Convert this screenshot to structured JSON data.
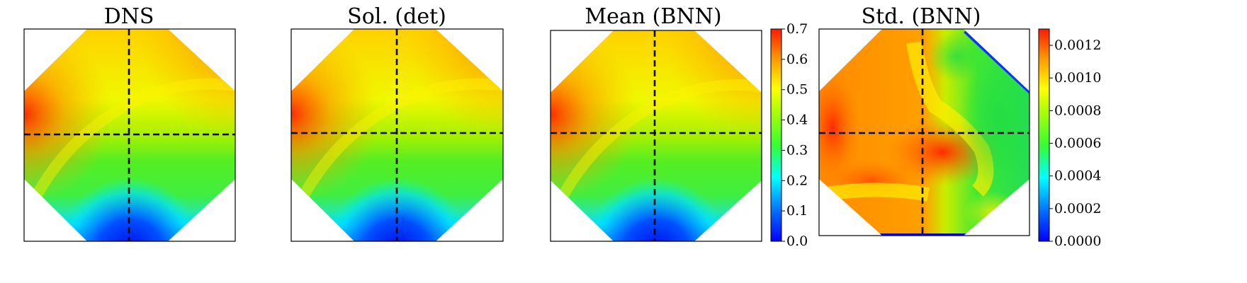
{
  "chart_data": [
    {
      "type": "heatmap",
      "title": "DNS",
      "style": "smooth",
      "colormap": "jet",
      "crosshair": "dashed black lines at domain center",
      "colorbar": null
    },
    {
      "type": "heatmap",
      "title": "Sol. (det)",
      "style": "pixelated",
      "colormap": "jet",
      "crosshair": "dashed black lines at domain center",
      "colorbar": null
    },
    {
      "type": "heatmap",
      "title": "Mean (BNN)",
      "style": "pixelated",
      "colormap": "jet",
      "crosshair": "dashed black lines at domain center",
      "colorbar": {
        "range": [
          0.0,
          0.7
        ],
        "ticks": [
          "0.0",
          "0.1",
          "0.2",
          "0.3",
          "0.4",
          "0.5",
          "0.6",
          "0.7"
        ]
      }
    },
    {
      "type": "heatmap",
      "title": "Std. (BNN)",
      "style": "smooth",
      "colormap": "jet",
      "crosshair": "dashed black lines at domain center",
      "colorbar": {
        "range": [
          0.0,
          0.0013
        ],
        "ticks": [
          "0.0000",
          "0.0002",
          "0.0004",
          "0.0006",
          "0.0008",
          "0.0010",
          "0.0012"
        ]
      }
    }
  ]
}
